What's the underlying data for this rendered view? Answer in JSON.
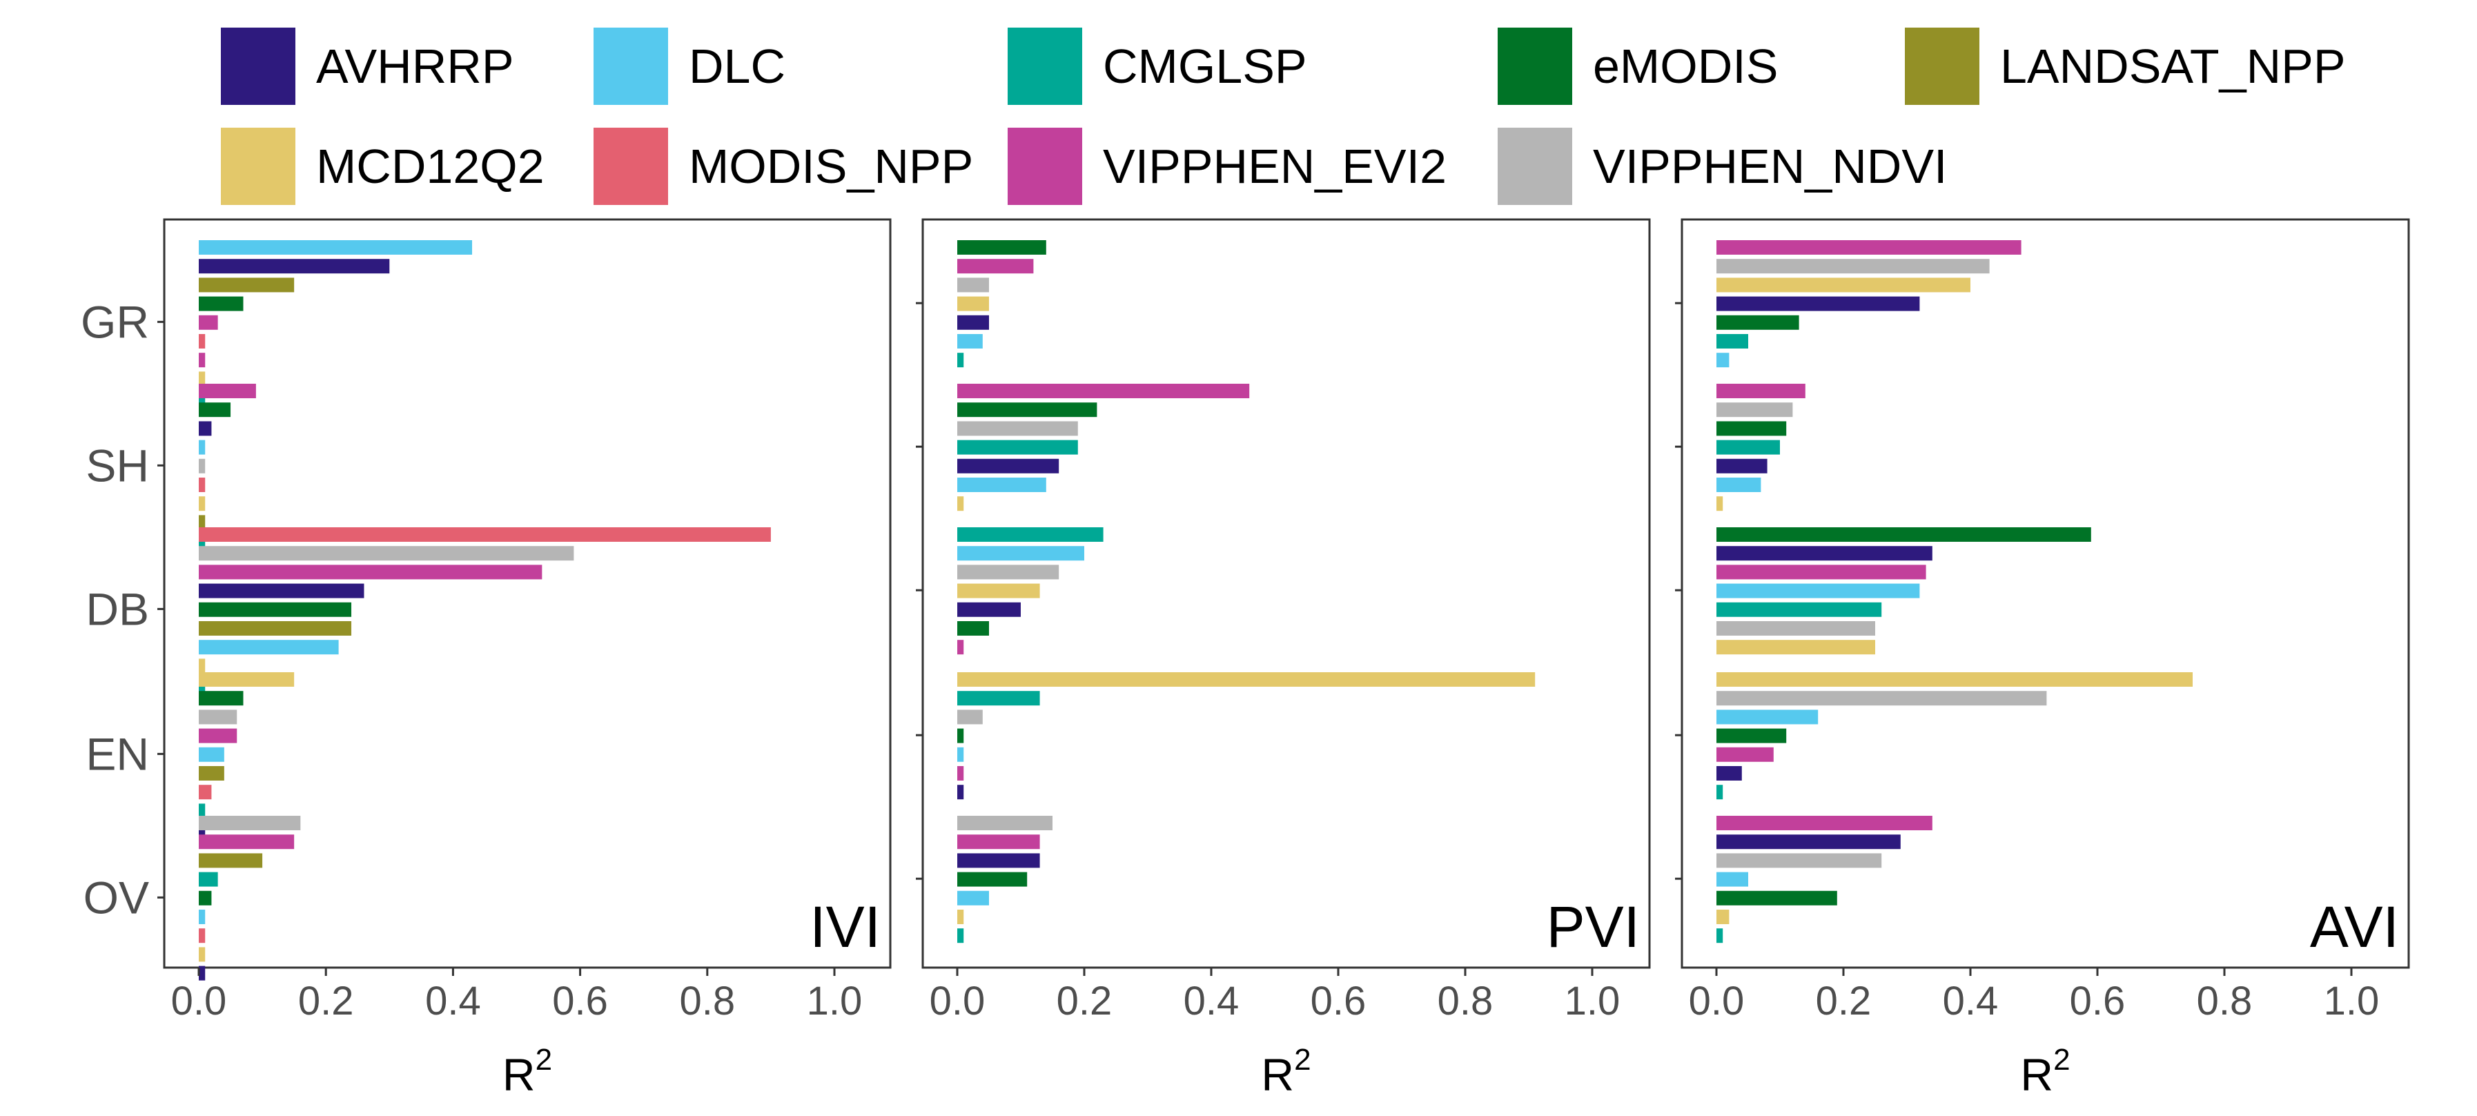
{
  "colors": {
    "AVHRRP": "#2e1a7e",
    "DLC": "#56c9ee",
    "CMGLSP": "#00a895",
    "eMODIS": "#007326",
    "LANDSAT_NPP": "#939026",
    "MCD12Q2": "#e3c86a",
    "MODIS_NPP": "#e46070",
    "VIPPHEN_EVI2": "#c2409b",
    "VIPPHEN_NDVI": "#b5b5b5"
  },
  "chart_data": [
    {
      "type": "bar",
      "orientation": "horizontal",
      "title": "IVI",
      "xlabel": "R",
      "xlabel_sup": "2",
      "xlim": [
        0,
        1
      ],
      "xticks": [
        "0.0",
        "0.2",
        "0.4",
        "0.6",
        "0.8",
        "1.0"
      ],
      "categories": [
        "GR",
        "SH",
        "DB",
        "EN",
        "OV"
      ],
      "groups": [
        {
          "category": "GR",
          "bars": [
            {
              "series": "DLC",
              "value": 0.43
            },
            {
              "series": "AVHRRP",
              "value": 0.3
            },
            {
              "series": "LANDSAT_NPP",
              "value": 0.15
            },
            {
              "series": "eMODIS",
              "value": 0.07
            },
            {
              "series": "VIPPHEN_EVI2",
              "value": 0.03
            },
            {
              "series": "MODIS_NPP",
              "value": 0.01
            },
            {
              "series": "VIPPHEN_EVI2",
              "value": 0.01
            },
            {
              "series": "MCD12Q2",
              "value": 0.01
            },
            {
              "series": "CMGLSP",
              "value": 0.01
            }
          ]
        },
        {
          "category": "SH",
          "bars": [
            {
              "series": "VIPPHEN_EVI2",
              "value": 0.09
            },
            {
              "series": "eMODIS",
              "value": 0.05
            },
            {
              "series": "AVHRRP",
              "value": 0.02
            },
            {
              "series": "DLC",
              "value": 0.01
            },
            {
              "series": "VIPPHEN_NDVI",
              "value": 0.01
            },
            {
              "series": "MODIS_NPP",
              "value": 0.01
            },
            {
              "series": "MCD12Q2",
              "value": 0.01
            },
            {
              "series": "LANDSAT_NPP",
              "value": 0.01
            },
            {
              "series": "CMGLSP",
              "value": 0.01
            }
          ]
        },
        {
          "category": "DB",
          "bars": [
            {
              "series": "MODIS_NPP",
              "value": 0.9
            },
            {
              "series": "VIPPHEN_NDVI",
              "value": 0.59
            },
            {
              "series": "VIPPHEN_EVI2",
              "value": 0.54
            },
            {
              "series": "AVHRRP",
              "value": 0.26
            },
            {
              "series": "eMODIS",
              "value": 0.24
            },
            {
              "series": "LANDSAT_NPP",
              "value": 0.24
            },
            {
              "series": "DLC",
              "value": 0.22
            },
            {
              "series": "MCD12Q2",
              "value": 0.01
            },
            {
              "series": "CMGLSP",
              "value": 0.01
            }
          ]
        },
        {
          "category": "EN",
          "bars": [
            {
              "series": "MCD12Q2",
              "value": 0.15
            },
            {
              "series": "eMODIS",
              "value": 0.07
            },
            {
              "series": "VIPPHEN_NDVI",
              "value": 0.06
            },
            {
              "series": "VIPPHEN_EVI2",
              "value": 0.06
            },
            {
              "series": "DLC",
              "value": 0.04
            },
            {
              "series": "LANDSAT_NPP",
              "value": 0.04
            },
            {
              "series": "MODIS_NPP",
              "value": 0.02
            },
            {
              "series": "CMGLSP",
              "value": 0.01
            },
            {
              "series": "AVHRRP",
              "value": 0.01
            }
          ]
        },
        {
          "category": "OV",
          "bars": [
            {
              "series": "VIPPHEN_NDVI",
              "value": 0.16
            },
            {
              "series": "VIPPHEN_EVI2",
              "value": 0.15
            },
            {
              "series": "LANDSAT_NPP",
              "value": 0.1
            },
            {
              "series": "CMGLSP",
              "value": 0.03
            },
            {
              "series": "eMODIS",
              "value": 0.02
            },
            {
              "series": "DLC",
              "value": 0.01
            },
            {
              "series": "MODIS_NPP",
              "value": 0.01
            },
            {
              "series": "MCD12Q2",
              "value": 0.01
            },
            {
              "series": "AVHRRP",
              "value": 0.01
            }
          ]
        }
      ]
    },
    {
      "type": "bar",
      "orientation": "horizontal",
      "title": "PVI",
      "xlabel": "R",
      "xlabel_sup": "2",
      "xlim": [
        0,
        1
      ],
      "xticks": [
        "0.0",
        "0.2",
        "0.4",
        "0.6",
        "0.8",
        "1.0"
      ],
      "categories": [
        "GR",
        "SH",
        "DB",
        "EN",
        "OV"
      ],
      "groups": [
        {
          "category": "GR",
          "bars": [
            {
              "series": "eMODIS",
              "value": 0.14
            },
            {
              "series": "VIPPHEN_EVI2",
              "value": 0.12
            },
            {
              "series": "VIPPHEN_NDVI",
              "value": 0.05
            },
            {
              "series": "MCD12Q2",
              "value": 0.05
            },
            {
              "series": "AVHRRP",
              "value": 0.05
            },
            {
              "series": "DLC",
              "value": 0.04
            },
            {
              "series": "CMGLSP",
              "value": 0.01
            }
          ]
        },
        {
          "category": "SH",
          "bars": [
            {
              "series": "VIPPHEN_EVI2",
              "value": 0.46
            },
            {
              "series": "eMODIS",
              "value": 0.22
            },
            {
              "series": "VIPPHEN_NDVI",
              "value": 0.19
            },
            {
              "series": "CMGLSP",
              "value": 0.19
            },
            {
              "series": "AVHRRP",
              "value": 0.16
            },
            {
              "series": "DLC",
              "value": 0.14
            },
            {
              "series": "MCD12Q2",
              "value": 0.01
            }
          ]
        },
        {
          "category": "DB",
          "bars": [
            {
              "series": "CMGLSP",
              "value": 0.23
            },
            {
              "series": "DLC",
              "value": 0.2
            },
            {
              "series": "VIPPHEN_NDVI",
              "value": 0.16
            },
            {
              "series": "MCD12Q2",
              "value": 0.13
            },
            {
              "series": "AVHRRP",
              "value": 0.1
            },
            {
              "series": "eMODIS",
              "value": 0.05
            },
            {
              "series": "VIPPHEN_EVI2",
              "value": 0.01
            }
          ]
        },
        {
          "category": "EN",
          "bars": [
            {
              "series": "MCD12Q2",
              "value": 0.91
            },
            {
              "series": "CMGLSP",
              "value": 0.13
            },
            {
              "series": "VIPPHEN_NDVI",
              "value": 0.04
            },
            {
              "series": "eMODIS",
              "value": 0.01
            },
            {
              "series": "DLC",
              "value": 0.01
            },
            {
              "series": "VIPPHEN_EVI2",
              "value": 0.01
            },
            {
              "series": "AVHRRP",
              "value": 0.01
            }
          ]
        },
        {
          "category": "OV",
          "bars": [
            {
              "series": "VIPPHEN_NDVI",
              "value": 0.15
            },
            {
              "series": "VIPPHEN_EVI2",
              "value": 0.13
            },
            {
              "series": "AVHRRP",
              "value": 0.13
            },
            {
              "series": "eMODIS",
              "value": 0.11
            },
            {
              "series": "DLC",
              "value": 0.05
            },
            {
              "series": "MCD12Q2",
              "value": 0.01
            },
            {
              "series": "CMGLSP",
              "value": 0.01
            }
          ]
        }
      ]
    },
    {
      "type": "bar",
      "orientation": "horizontal",
      "title": "AVI",
      "xlabel": "R",
      "xlabel_sup": "2",
      "xlim": [
        0,
        1
      ],
      "xticks": [
        "0.0",
        "0.2",
        "0.4",
        "0.6",
        "0.8",
        "1.0"
      ],
      "categories": [
        "GR",
        "SH",
        "DB",
        "EN",
        "OV"
      ],
      "groups": [
        {
          "category": "GR",
          "bars": [
            {
              "series": "VIPPHEN_EVI2",
              "value": 0.48
            },
            {
              "series": "VIPPHEN_NDVI",
              "value": 0.43
            },
            {
              "series": "MCD12Q2",
              "value": 0.4
            },
            {
              "series": "AVHRRP",
              "value": 0.32
            },
            {
              "series": "eMODIS",
              "value": 0.13
            },
            {
              "series": "CMGLSP",
              "value": 0.05
            },
            {
              "series": "DLC",
              "value": 0.02
            }
          ]
        },
        {
          "category": "SH",
          "bars": [
            {
              "series": "VIPPHEN_EVI2",
              "value": 0.14
            },
            {
              "series": "VIPPHEN_NDVI",
              "value": 0.12
            },
            {
              "series": "eMODIS",
              "value": 0.11
            },
            {
              "series": "CMGLSP",
              "value": 0.1
            },
            {
              "series": "AVHRRP",
              "value": 0.08
            },
            {
              "series": "DLC",
              "value": 0.07
            },
            {
              "series": "MCD12Q2",
              "value": 0.01
            }
          ]
        },
        {
          "category": "DB",
          "bars": [
            {
              "series": "eMODIS",
              "value": 0.59
            },
            {
              "series": "AVHRRP",
              "value": 0.34
            },
            {
              "series": "VIPPHEN_EVI2",
              "value": 0.33
            },
            {
              "series": "DLC",
              "value": 0.32
            },
            {
              "series": "CMGLSP",
              "value": 0.26
            },
            {
              "series": "VIPPHEN_NDVI",
              "value": 0.25
            },
            {
              "series": "MCD12Q2",
              "value": 0.25
            }
          ]
        },
        {
          "category": "EN",
          "bars": [
            {
              "series": "MCD12Q2",
              "value": 0.75
            },
            {
              "series": "VIPPHEN_NDVI",
              "value": 0.52
            },
            {
              "series": "DLC",
              "value": 0.16
            },
            {
              "series": "eMODIS",
              "value": 0.11
            },
            {
              "series": "VIPPHEN_EVI2",
              "value": 0.09
            },
            {
              "series": "AVHRRP",
              "value": 0.04
            },
            {
              "series": "CMGLSP",
              "value": 0.01
            }
          ]
        },
        {
          "category": "OV",
          "bars": [
            {
              "series": "VIPPHEN_EVI2",
              "value": 0.34
            },
            {
              "series": "AVHRRP",
              "value": 0.29
            },
            {
              "series": "VIPPHEN_NDVI",
              "value": 0.26
            },
            {
              "series": "DLC",
              "value": 0.05
            },
            {
              "series": "eMODIS",
              "value": 0.19
            },
            {
              "series": "MCD12Q2",
              "value": 0.02
            },
            {
              "series": "CMGLSP",
              "value": 0.01
            }
          ]
        }
      ]
    }
  ],
  "legend": {
    "placement": "top",
    "rows": [
      [
        {
          "key": "AVHRRP",
          "label": "AVHRRP"
        },
        {
          "key": "DLC",
          "label": "DLC"
        },
        {
          "key": "CMGLSP",
          "label": "CMGLSP"
        },
        {
          "key": "eMODIS",
          "label": "eMODIS"
        },
        {
          "key": "LANDSAT_NPP",
          "label": "LANDSAT_NPP"
        }
      ],
      [
        {
          "key": "MCD12Q2",
          "label": "MCD12Q2"
        },
        {
          "key": "MODIS_NPP",
          "label": "MODIS_NPP"
        },
        {
          "key": "VIPPHEN_EVI2",
          "label": "VIPPHEN_EVI2"
        },
        {
          "key": "VIPPHEN_NDVI",
          "label": "VIPPHEN_NDVI"
        }
      ]
    ]
  }
}
